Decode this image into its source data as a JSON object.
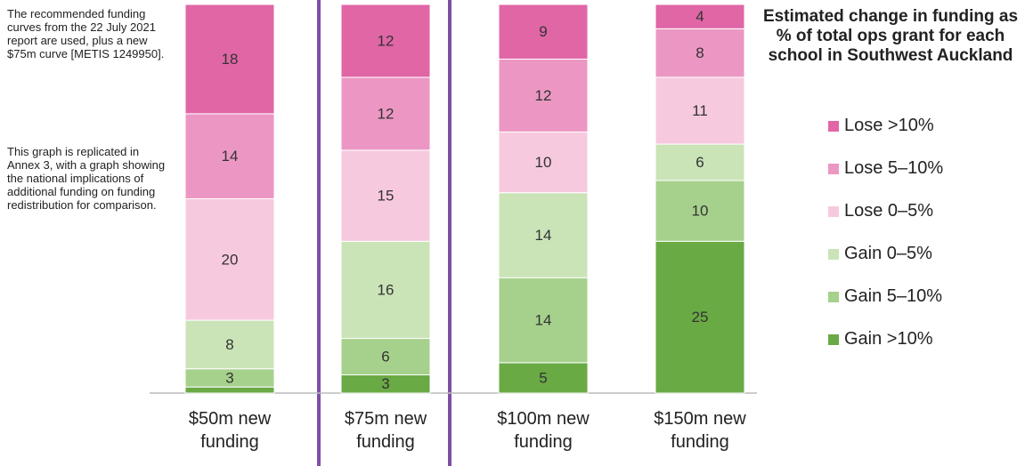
{
  "annotation": [
    "The recommended funding curves from the 22 July 2021 report are used, plus a new $75m curve [METIS 1249950].",
    "This graph is replicated in Annex 3, with a graph showing the national implications of additional funding on funding redistribution for comparison."
  ],
  "chart_data": {
    "type": "bar",
    "stacked": true,
    "legend_title": "Estimated change in funding as % of total ops grant for each school in Southwest Auckland",
    "categories": [
      "$50m new funding",
      "$75m new funding",
      "$100m new funding",
      "$150m new funding"
    ],
    "ylim": [
      0,
      64
    ],
    "series": [
      {
        "name": "Gain >10%",
        "color": "#6aaa45",
        "values": [
          1,
          3,
          5,
          25
        ],
        "value_labels": [
          null,
          "3",
          "5",
          "25"
        ]
      },
      {
        "name": "Gain 5–10%",
        "color": "#a6d18c",
        "values": [
          3,
          6,
          14,
          10
        ]
      },
      {
        "name": "Gain 0–5%",
        "color": "#cae4b8",
        "values": [
          8,
          16,
          14,
          6
        ]
      },
      {
        "name": "Lose 0–5%",
        "color": "#f7c9df",
        "values": [
          20,
          15,
          10,
          11
        ]
      },
      {
        "name": "Lose 5–10%",
        "color": "#ec97c3",
        "values": [
          14,
          12,
          12,
          8
        ]
      },
      {
        "name": "Lose >10%",
        "color": "#e066a6",
        "values": [
          18,
          12,
          9,
          4
        ]
      }
    ]
  }
}
